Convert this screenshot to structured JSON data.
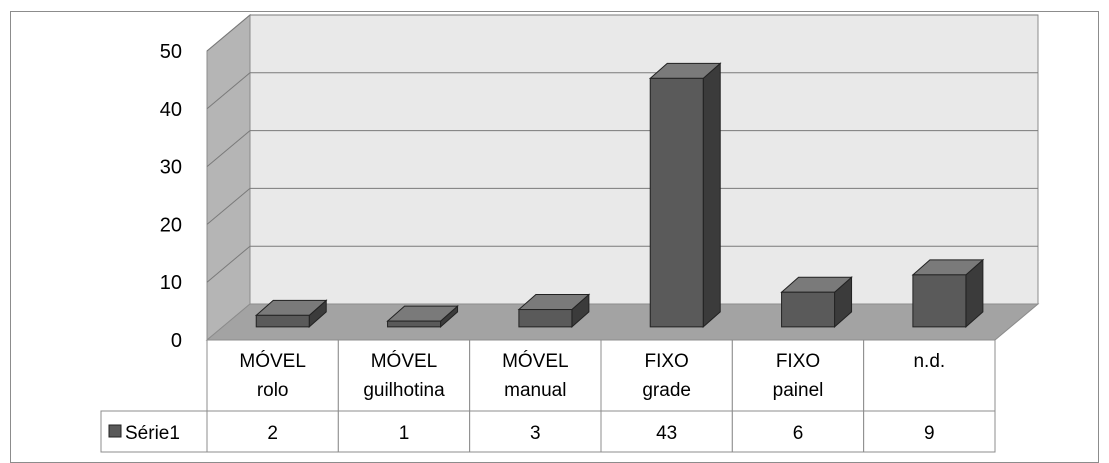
{
  "chart_data": {
    "type": "bar",
    "categories": [
      [
        "MÓVEL",
        "rolo"
      ],
      [
        "MÓVEL",
        "guilhotina"
      ],
      [
        "MÓVEL",
        "manual"
      ],
      [
        "FIXO",
        "grade"
      ],
      [
        "FIXO",
        "painel"
      ],
      [
        "n.d."
      ]
    ],
    "series": [
      {
        "name": "Série1",
        "values": [
          2,
          1,
          3,
          43,
          6,
          9
        ]
      }
    ],
    "ylim": [
      0,
      50
    ],
    "yticks": [
      "0",
      "10",
      "20",
      "30",
      "40",
      "50"
    ],
    "grid": true,
    "legend": "data-table",
    "data_table": true,
    "colors": {
      "bar_front": "#5a5a5a",
      "bar_side": "#3b3b3b",
      "bar_top": "#7a7a7a",
      "back_wall": "#e9e9e9",
      "side_wall": "#b5b5b5",
      "floor": "#a3a3a3"
    }
  }
}
